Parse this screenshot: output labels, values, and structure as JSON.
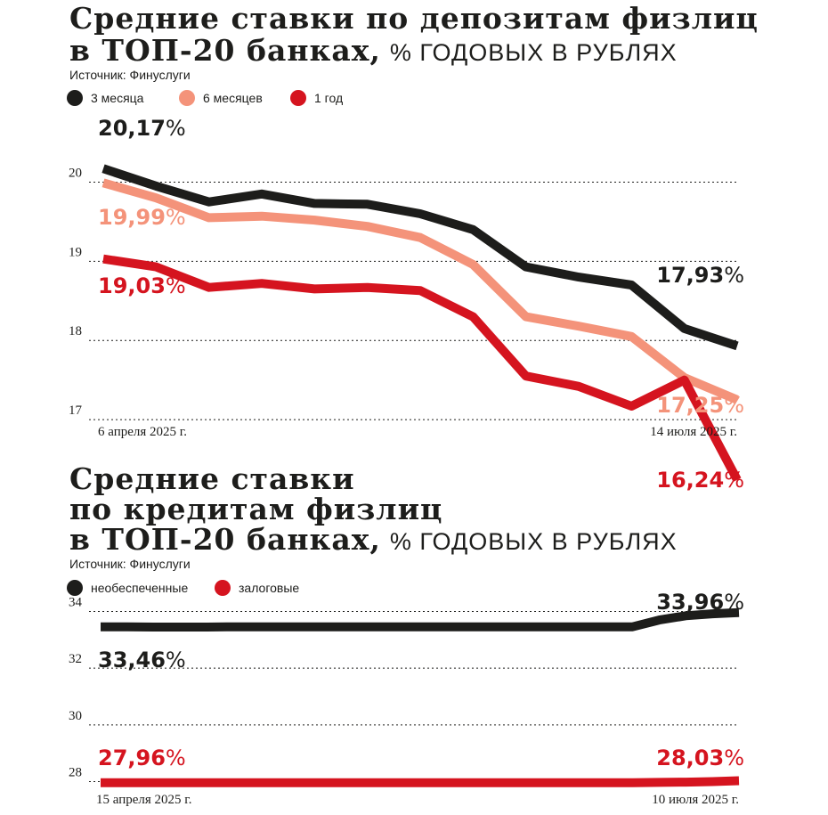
{
  "chart_data": [
    {
      "type": "line",
      "title": "Средние ставки по депозитам физлиц в ТОП-20 банках,",
      "title_lines": [
        "Средние ставки по депозитам физлиц",
        "в ТОП-20 банках,"
      ],
      "unit_label": "% годовых в рублях",
      "source": "Источник: Финуслуги",
      "legend_placement": "top-left",
      "grid": true,
      "ylim": [
        16.9,
        20.5
      ],
      "y_ticks": [
        "20",
        "19",
        "18",
        "17"
      ],
      "x_start_label": "6 апреля 2025 г.",
      "x_end_label": "14 июля 2025 г.",
      "series": [
        {
          "name": "3 месяца",
          "color": "#1d1d1b",
          "values": [
            20.17,
            19.95,
            19.75,
            19.85,
            19.73,
            19.72,
            19.6,
            19.4,
            18.93,
            18.8,
            18.7,
            18.15,
            17.93
          ],
          "start_label": "20,17",
          "end_label": "17,93"
        },
        {
          "name": "6 месяцев",
          "color": "#f4937a",
          "values": [
            19.99,
            19.8,
            19.55,
            19.57,
            19.52,
            19.44,
            19.3,
            18.96,
            18.3,
            18.18,
            18.05,
            17.53,
            17.25
          ],
          "start_label": "19,99",
          "end_label": "17,25"
        },
        {
          "name": "1 год",
          "color": "#d5141f",
          "values": [
            19.03,
            18.93,
            18.67,
            18.72,
            18.65,
            18.67,
            18.63,
            18.3,
            17.55,
            17.42,
            17.17,
            17.5,
            16.24
          ],
          "start_label": "19,03",
          "end_label": "16,24"
        }
      ]
    },
    {
      "type": "line",
      "title": "Средние ставки по кредитам физлиц в ТОП-20 банках,",
      "title_lines": [
        "Средние ставки",
        "по кредитам физлиц",
        "в ТОП-20 банках,"
      ],
      "unit_label": "% годовых в рублях",
      "source": "Источник: Финуслуги",
      "legend_placement": "top-left",
      "grid": true,
      "ylim": [
        27.7,
        34.3
      ],
      "y_ticks": [
        "34",
        "32",
        "30",
        "28"
      ],
      "x_start_label": "15 апреля 2025 г.",
      "x_end_label": "10 июля 2025 г.",
      "series": [
        {
          "name": "необеспеченные",
          "color": "#1d1d1b",
          "values": [
            33.46,
            33.46,
            33.45,
            33.45,
            33.45,
            33.46,
            33.46,
            33.46,
            33.46,
            33.46,
            33.46,
            33.46,
            33.46,
            33.46,
            33.46,
            33.46,
            33.46,
            33.46,
            33.46,
            33.46,
            33.46,
            33.7,
            33.85,
            33.92,
            33.96
          ],
          "start_label": "33,46",
          "end_label": "33,96"
        },
        {
          "name": "залоговые",
          "color": "#d5141f",
          "values": [
            27.96,
            27.96,
            27.96,
            27.96,
            27.96,
            27.96,
            27.96,
            27.96,
            27.96,
            27.96,
            27.96,
            27.96,
            27.96,
            27.96,
            27.96,
            27.96,
            27.96,
            27.96,
            27.96,
            27.96,
            27.96,
            27.97,
            27.98,
            28.0,
            28.03
          ],
          "start_label": "27,96",
          "end_label": "28,03"
        }
      ]
    }
  ]
}
